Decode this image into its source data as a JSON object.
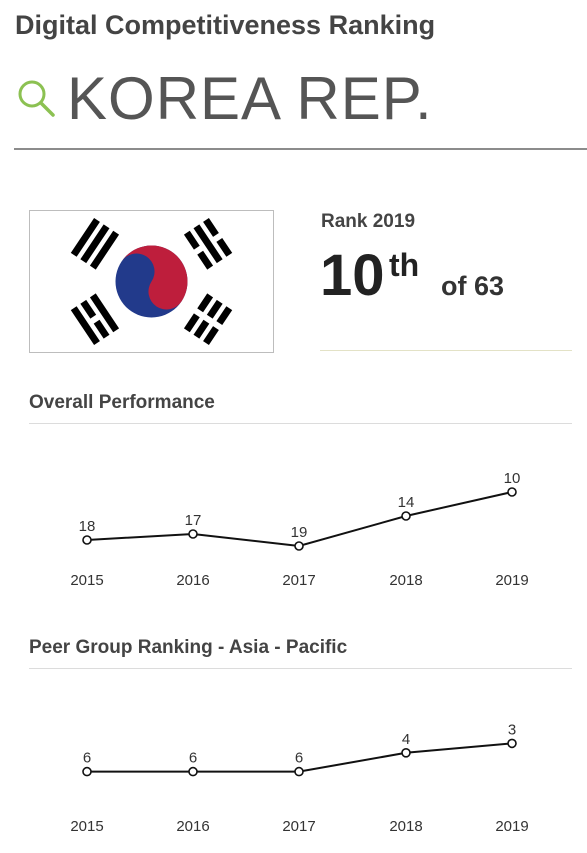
{
  "header": {
    "title": "Digital Competitiveness Ranking",
    "country": "KOREA REP.",
    "search_icon": "search-icon"
  },
  "flag": {
    "name": "south-korea-flag",
    "colors": {
      "red": "#BE1E3C",
      "blue": "#223A8B",
      "black": "#000000"
    }
  },
  "rank": {
    "label": "Rank 2019",
    "value": "10",
    "suffix": "th",
    "of_text": "of 63"
  },
  "sections": {
    "overall_title": "Overall Performance",
    "peer_title": "Peer Group Ranking - Asia - Pacific"
  },
  "chart_data": [
    {
      "type": "line",
      "title": "Overall Performance",
      "categories": [
        "2015",
        "2016",
        "2017",
        "2018",
        "2019"
      ],
      "series": [
        {
          "values": [
            18,
            17,
            19,
            14,
            10
          ]
        }
      ],
      "xlabel": "",
      "ylabel": "",
      "y_inverted": true,
      "grid": false
    },
    {
      "type": "line",
      "title": "Peer Group Ranking - Asia - Pacific",
      "categories": [
        "2015",
        "2016",
        "2017",
        "2018",
        "2019"
      ],
      "series": [
        {
          "values": [
            6,
            6,
            6,
            4,
            3
          ]
        }
      ],
      "xlabel": "",
      "ylabel": "",
      "y_inverted": true,
      "grid": false
    }
  ]
}
